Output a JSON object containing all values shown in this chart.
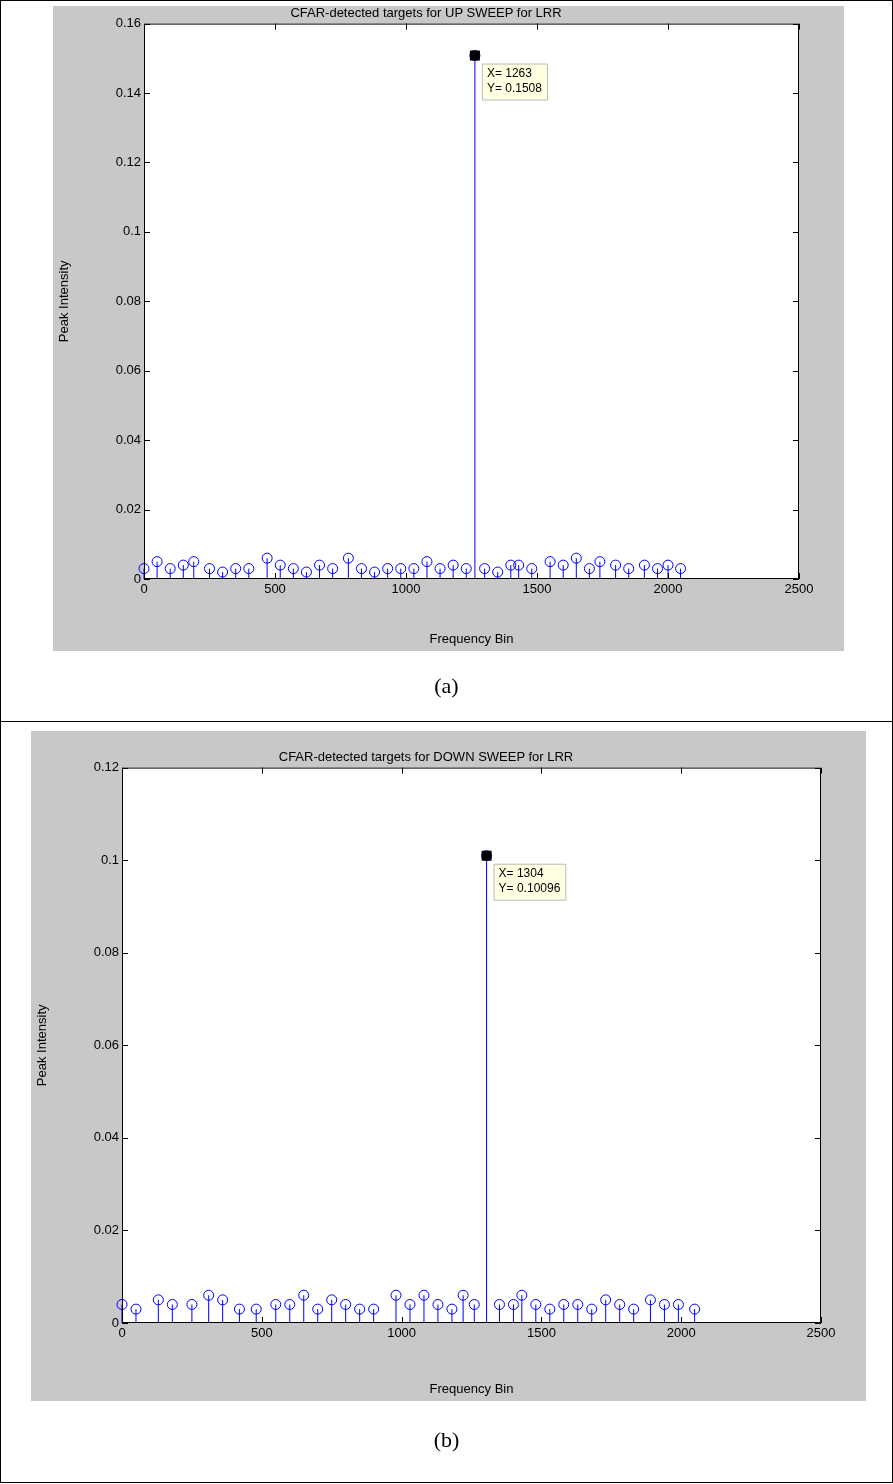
{
  "chart_data": [
    {
      "type": "lollipop",
      "title": "CFAR-detected targets for UP SWEEP for LRR",
      "xlabel": "Frequency Bin",
      "ylabel": "Peak Intensity",
      "color": "#0000ff",
      "marker": "circle",
      "x": [
        0,
        50,
        100,
        150,
        190,
        250,
        300,
        350,
        400,
        470,
        520,
        570,
        620,
        670,
        720,
        780,
        830,
        880,
        930,
        980,
        1030,
        1080,
        1130,
        1180,
        1230,
        1263,
        1300,
        1350,
        1400,
        1430,
        1480,
        1550,
        1600,
        1650,
        1700,
        1740,
        1800,
        1850,
        1910,
        1960,
        2000,
        2048
      ],
      "values": [
        0.003,
        0.005,
        0.003,
        0.004,
        0.005,
        0.003,
        0.002,
        0.003,
        0.003,
        0.006,
        0.004,
        0.003,
        0.002,
        0.004,
        0.003,
        0.006,
        0.003,
        0.002,
        0.003,
        0.003,
        0.003,
        0.005,
        0.003,
        0.004,
        0.003,
        0.1508,
        0.003,
        0.002,
        0.004,
        0.004,
        0.003,
        0.005,
        0.004,
        0.006,
        0.003,
        0.005,
        0.004,
        0.003,
        0.004,
        0.003,
        0.004,
        0.003
      ],
      "xlim": [
        0,
        2500
      ],
      "xticks": [
        0,
        500,
        1000,
        1500,
        2000,
        2500
      ],
      "ylim": [
        0,
        0.16
      ],
      "yticks": [
        0,
        0.02,
        0.04,
        0.06,
        0.08,
        0.1,
        0.12,
        0.14,
        0.16
      ],
      "annotations": [
        {
          "text": "X= 1263\nY= 0.1508",
          "x": 1263,
          "y": 0.1508
        },
        "(a)"
      ]
    },
    {
      "type": "lollipop",
      "title": "CFAR-detected targets for DOWN SWEEP for LRR",
      "xlabel": "Frequency Bin",
      "ylabel": "Peak Intensity",
      "color": "#0000ff",
      "marker": "circle",
      "x": [
        0,
        50,
        130,
        180,
        250,
        310,
        360,
        420,
        480,
        550,
        600,
        650,
        700,
        750,
        800,
        850,
        900,
        980,
        1030,
        1080,
        1130,
        1180,
        1220,
        1260,
        1304,
        1350,
        1400,
        1430,
        1480,
        1530,
        1580,
        1630,
        1680,
        1730,
        1780,
        1830,
        1890,
        1940,
        1990,
        2048
      ],
      "values": [
        0.004,
        0.003,
        0.005,
        0.004,
        0.004,
        0.006,
        0.005,
        0.003,
        0.003,
        0.004,
        0.004,
        0.006,
        0.003,
        0.005,
        0.004,
        0.003,
        0.003,
        0.006,
        0.004,
        0.006,
        0.004,
        0.003,
        0.006,
        0.004,
        0.10096,
        0.004,
        0.004,
        0.006,
        0.004,
        0.003,
        0.004,
        0.004,
        0.003,
        0.005,
        0.004,
        0.003,
        0.005,
        0.004,
        0.004,
        0.003
      ],
      "xlim": [
        0,
        2500
      ],
      "xticks": [
        0,
        500,
        1000,
        1500,
        2000,
        2500
      ],
      "ylim": [
        0,
        0.12
      ],
      "yticks": [
        0,
        0.02,
        0.04,
        0.06,
        0.08,
        0.1,
        0.12
      ],
      "annotations": [
        {
          "text": "X= 1304\nY= 0.10096",
          "x": 1304,
          "y": 0.10096
        },
        "(b)"
      ]
    }
  ]
}
